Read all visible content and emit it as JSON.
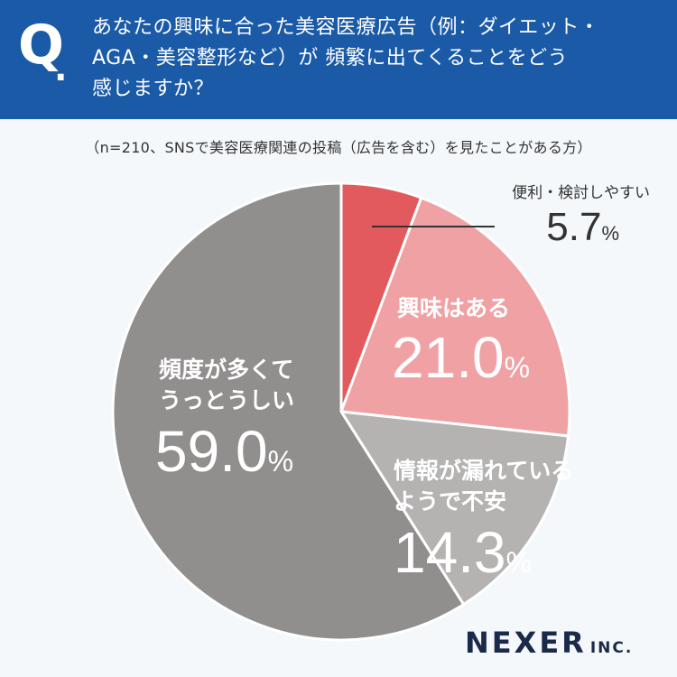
{
  "header": {
    "q_letter": "Q",
    "q_dot": ".",
    "question_lines": [
      "あなたの興味に合った美容医療広告（例：ダイエット・",
      "AGA・美容整形など）が 頻繁に出てくることをどう",
      "感じますか？"
    ]
  },
  "note": "（n=210、SNSで美容医療関連の投稿（広告を含む）を見たことがある方）",
  "logo": {
    "main": "NEXER",
    "sub": "INC."
  },
  "colors": {
    "header_bg": "#1a5aa6",
    "slice_convenient": "#e25a5e",
    "slice_interest": "#f0a1a3",
    "slice_anxious": "#b5b3b2",
    "slice_annoying": "#918e8e"
  },
  "chart_data": {
    "type": "pie",
    "unit": "%",
    "slices": [
      {
        "label_lines": [
          "便利・検討しやすい"
        ],
        "value": 5.7,
        "value_text": "5.7",
        "color": "#e25a5e"
      },
      {
        "label_lines": [
          "興味はある"
        ],
        "value": 21.0,
        "value_text": "21.0",
        "color": "#f0a1a3"
      },
      {
        "label_lines": [
          "情報が漏れている",
          "ようで不安"
        ],
        "value": 14.3,
        "value_text": "14.3",
        "color": "#b5b3b2"
      },
      {
        "label_lines": [
          "頻度が多くて",
          "うっとうしい"
        ],
        "value": 59.0,
        "value_text": "59.0",
        "color": "#918e8e"
      }
    ]
  }
}
